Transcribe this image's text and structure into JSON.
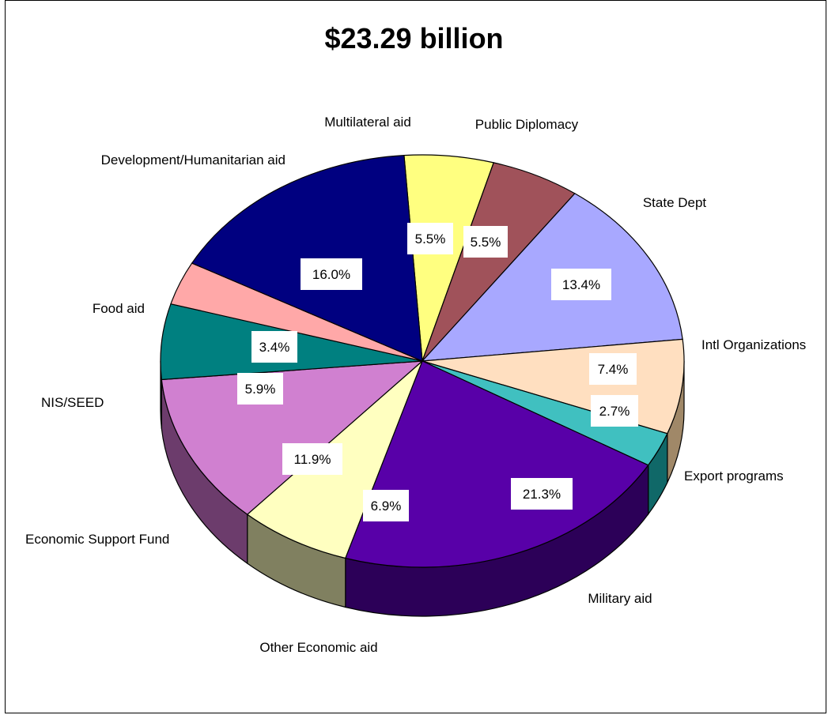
{
  "chart_data": {
    "type": "pie",
    "title": "$23.29 billion",
    "slices": [
      {
        "label": "Multilateral aid",
        "value": 5.5,
        "display": "5.5%",
        "color": "#ffff80",
        "side": "#808040"
      },
      {
        "label": "Public Diplomacy",
        "value": 5.5,
        "display": "5.5%",
        "color": "#a0525a",
        "side": "#60282e"
      },
      {
        "label": "State Dept",
        "value": 13.4,
        "display": "13.4%",
        "color": "#a8a8ff",
        "side": "#6060a0"
      },
      {
        "label": "Intl Organizations",
        "value": 7.4,
        "display": "7.4%",
        "color": "#ffdfc0",
        "side": "#a08868"
      },
      {
        "label": "Export programs",
        "value": 2.7,
        "display": "2.7%",
        "color": "#40c0c0",
        "side": "#106868"
      },
      {
        "label": "Military aid",
        "value": 21.3,
        "display": "21.3%",
        "color": "#5800a8",
        "side": "#2c0058"
      },
      {
        "label": "Other Economic aid",
        "value": 6.9,
        "display": "6.9%",
        "color": "#ffffc0",
        "side": "#808060"
      },
      {
        "label": "Economic Support Fund",
        "value": 11.9,
        "display": "11.9%",
        "color": "#d080d0",
        "side": "#6c3c6c"
      },
      {
        "label": "NIS/SEED",
        "value": 5.9,
        "display": "5.9%",
        "color": "#008080",
        "side": "#004848"
      },
      {
        "label": "Food aid",
        "value": 3.4,
        "display": "3.4%",
        "color": "#ffa8a8",
        "side": "#a06060"
      },
      {
        "label": "Development/Humanitarian aid",
        "value": 16.0,
        "display": "16.0%",
        "color": "#000080",
        "side": "#000048"
      }
    ]
  }
}
